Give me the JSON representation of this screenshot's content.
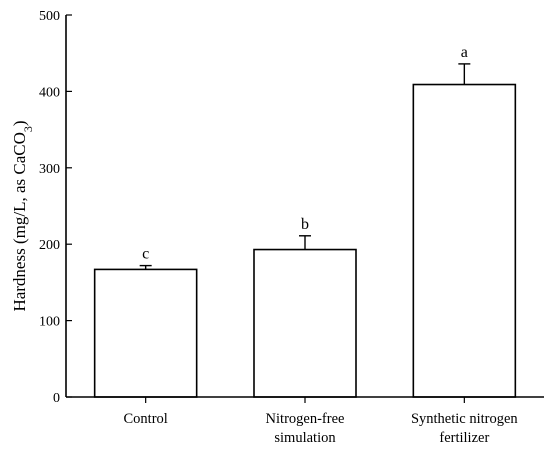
{
  "chart_data": {
    "type": "bar",
    "categories": [
      [
        "Control"
      ],
      [
        "Nitrogen-free",
        "simulation"
      ],
      [
        "Synthetic nitrogen",
        "fertilizer"
      ]
    ],
    "values": [
      167,
      193,
      409
    ],
    "error_bars": [
      5,
      18,
      27
    ],
    "significance_letters": [
      "c",
      "b",
      "a"
    ],
    "ylabel": {
      "main": "Hardness (mg/L, as CaCO",
      "subscript": "3",
      "suffix": ")"
    },
    "ylim": [
      0,
      500
    ],
    "yticks": [
      0,
      100,
      200,
      300,
      400,
      500
    ],
    "grid": false,
    "legend": "none",
    "colors": {
      "bar_fill": "#ffffff",
      "bar_stroke": "#000000",
      "axis": "#000000"
    }
  }
}
